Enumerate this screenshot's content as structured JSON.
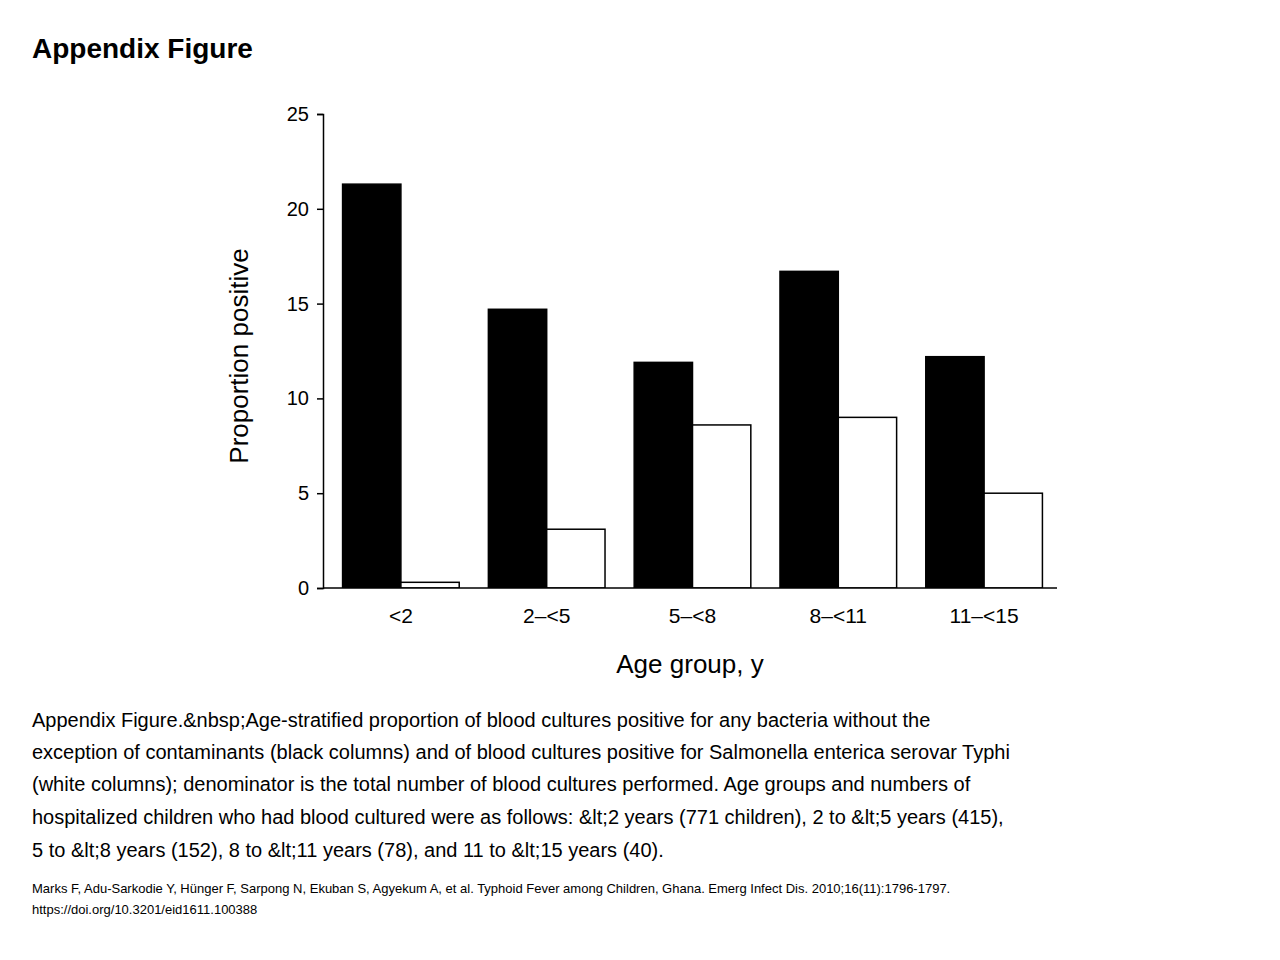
{
  "chart_data": {
    "type": "bar",
    "title": "Appendix Figure",
    "x_label": "Age group, y",
    "y_label": "Proportion positive",
    "categories": [
      "<2",
      "2–<5",
      "5–<8",
      "8–<11",
      "11–<15"
    ],
    "series": [
      {
        "color": "#000000",
        "values": [
          21.3,
          14.7,
          11.9,
          16.7,
          12.2
        ]
      },
      {
        "color": "#ffffff",
        "values": [
          0.3,
          3.1,
          8.6,
          9.0,
          5.0
        ]
      }
    ],
    "ylim": [
      0,
      25
    ],
    "yticks": [
      0,
      5,
      10,
      15,
      20,
      25
    ],
    "grid": false,
    "annotations": [
      "Appendix Figure.&nbsp;Age-stratified proportion of blood cultures positive for any bacteria without the",
      "exception of contaminants (black columns) and of blood cultures positive for Salmonella enterica serovar Typhi",
      "(white columns); denominator is the total number of blood cultures performed. Age groups and numbers of",
      "hospitalized children who had blood cultured were as follows: &lt;2 years (771 children), 2 to &lt;5 years (415),",
      "5 to &lt;8 years (152), 8 to &lt;11 years (78), and 11 to &lt;15 years (40).",
      "Marks F, Adu-Sarkodie Y, Hünger F, Sarpong N, Ekuban S, Agyekum A, et al. Typhoid Fever among Children, Ghana. Emerg Infect Dis. 2010;16(11):1796-1797.",
      "https://doi.org/10.3201/eid1611.100388"
    ]
  }
}
